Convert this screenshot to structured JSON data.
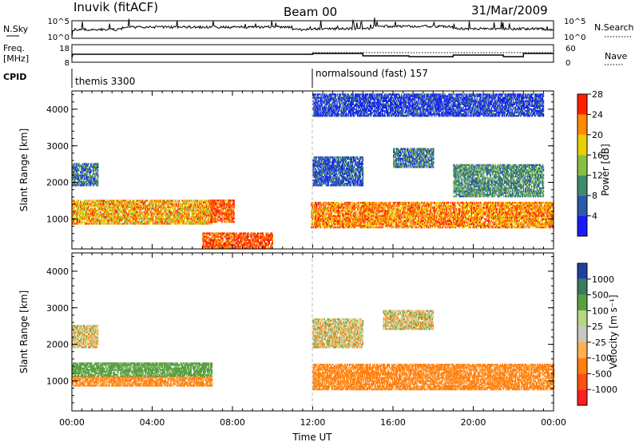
{
  "header": {
    "station": "Inuvik (fitACF)",
    "beam": "Beam 00",
    "date": "31/Mar/2009"
  },
  "top_panels": {
    "nsky_label": "N.Sky",
    "nsky_ticks": [
      "10^5",
      "10^0"
    ],
    "nsearch_label": "N.Search",
    "nsearch_ticks": [
      "10^5",
      "10^0"
    ],
    "freq_label": "Freq.",
    "freq_unit": "[MHz]",
    "freq_ticks": [
      "18",
      "8"
    ],
    "nave_label": "Nave",
    "nave_ticks": [
      "60",
      "0"
    ],
    "cpid_label": "CPID",
    "cpid_segments": [
      {
        "label": "themis 3300",
        "start_hour": 0
      },
      {
        "label": "normalsound (fast) 157",
        "start_hour": 12
      }
    ]
  },
  "axes": {
    "ylabel": "Slant Range [km]",
    "y_ticks": [
      "1000",
      "2000",
      "3000",
      "4000"
    ],
    "x_ticks": [
      "00:00",
      "04:00",
      "08:00",
      "12:00",
      "16:00",
      "20:00",
      "00:00"
    ],
    "xlabel": "Time UT"
  },
  "colorbars": {
    "power": {
      "label": "Power [dB]",
      "ticks": [
        "4",
        "8",
        "12",
        "16",
        "20",
        "24",
        "28"
      ],
      "colors": [
        "#1a1aff",
        "#2a5aa8",
        "#3f8a6a",
        "#86c040",
        "#e8d000",
        "#ff8c00",
        "#ff2000"
      ]
    },
    "velocity": {
      "label": "Velocity [m s⁻¹]",
      "ticks": [
        "1000",
        "500",
        "100",
        "25",
        "-25",
        "-100",
        "-500",
        "-1000"
      ],
      "colors": [
        "#1f3fa0",
        "#3a7a60",
        "#5aa040",
        "#b4d880",
        "#c8c8c0",
        "#ffb050",
        "#ff8010",
        "#ff5010",
        "#ff2020"
      ]
    }
  },
  "chart_data": {
    "type": "heatmap",
    "title": "Inuvik (fitACF)   Beam 00   31/Mar/2009",
    "xlabel": "Time UT",
    "ylabel": "Slant Range [km]",
    "x_range_hours": [
      0,
      24
    ],
    "y_range_km": [
      180,
      4500
    ],
    "series": [
      {
        "name": "Power [dB]",
        "regions": [
          {
            "t0": 0.0,
            "t1": 7.0,
            "r0": 850,
            "r1": 1500,
            "value": 22
          },
          {
            "t0": 0.0,
            "t1": 1.3,
            "r0": 1900,
            "r1": 2500,
            "value": 10
          },
          {
            "t0": 6.9,
            "t1": 8.1,
            "r0": 900,
            "r1": 1500,
            "value": 27
          },
          {
            "t0": 6.5,
            "t1": 10.0,
            "r0": 180,
            "r1": 600,
            "value": 27
          },
          {
            "t0": 11.9,
            "t1": 24.0,
            "r0": 750,
            "r1": 1450,
            "value": 24
          },
          {
            "t0": 12.0,
            "t1": 14.5,
            "r0": 1900,
            "r1": 2700,
            "value": 8
          },
          {
            "t0": 16.0,
            "t1": 18.0,
            "r0": 2400,
            "r1": 2900,
            "value": 10
          },
          {
            "t0": 19.0,
            "t1": 23.5,
            "r0": 1600,
            "r1": 2500,
            "value": 12
          },
          {
            "t0": 12.0,
            "t1": 23.5,
            "r0": 3800,
            "r1": 4400,
            "value": 6
          }
        ]
      },
      {
        "name": "Velocity [m s^-1]",
        "regions": [
          {
            "t0": 0.0,
            "t1": 7.0,
            "r0": 1100,
            "r1": 1500,
            "value": 300
          },
          {
            "t0": 0.0,
            "t1": 7.0,
            "r0": 850,
            "r1": 1100,
            "value": -200
          },
          {
            "t0": 0.0,
            "t1": 1.3,
            "r0": 1900,
            "r1": 2500,
            "value": 0
          },
          {
            "t0": 12.0,
            "t1": 24.0,
            "r0": 750,
            "r1": 1450,
            "value": -200
          },
          {
            "t0": 12.0,
            "t1": 14.5,
            "r0": 1900,
            "r1": 2700,
            "value": 0
          },
          {
            "t0": 15.5,
            "t1": 18.0,
            "r0": 2400,
            "r1": 2900,
            "value": 0
          }
        ]
      }
    ]
  }
}
